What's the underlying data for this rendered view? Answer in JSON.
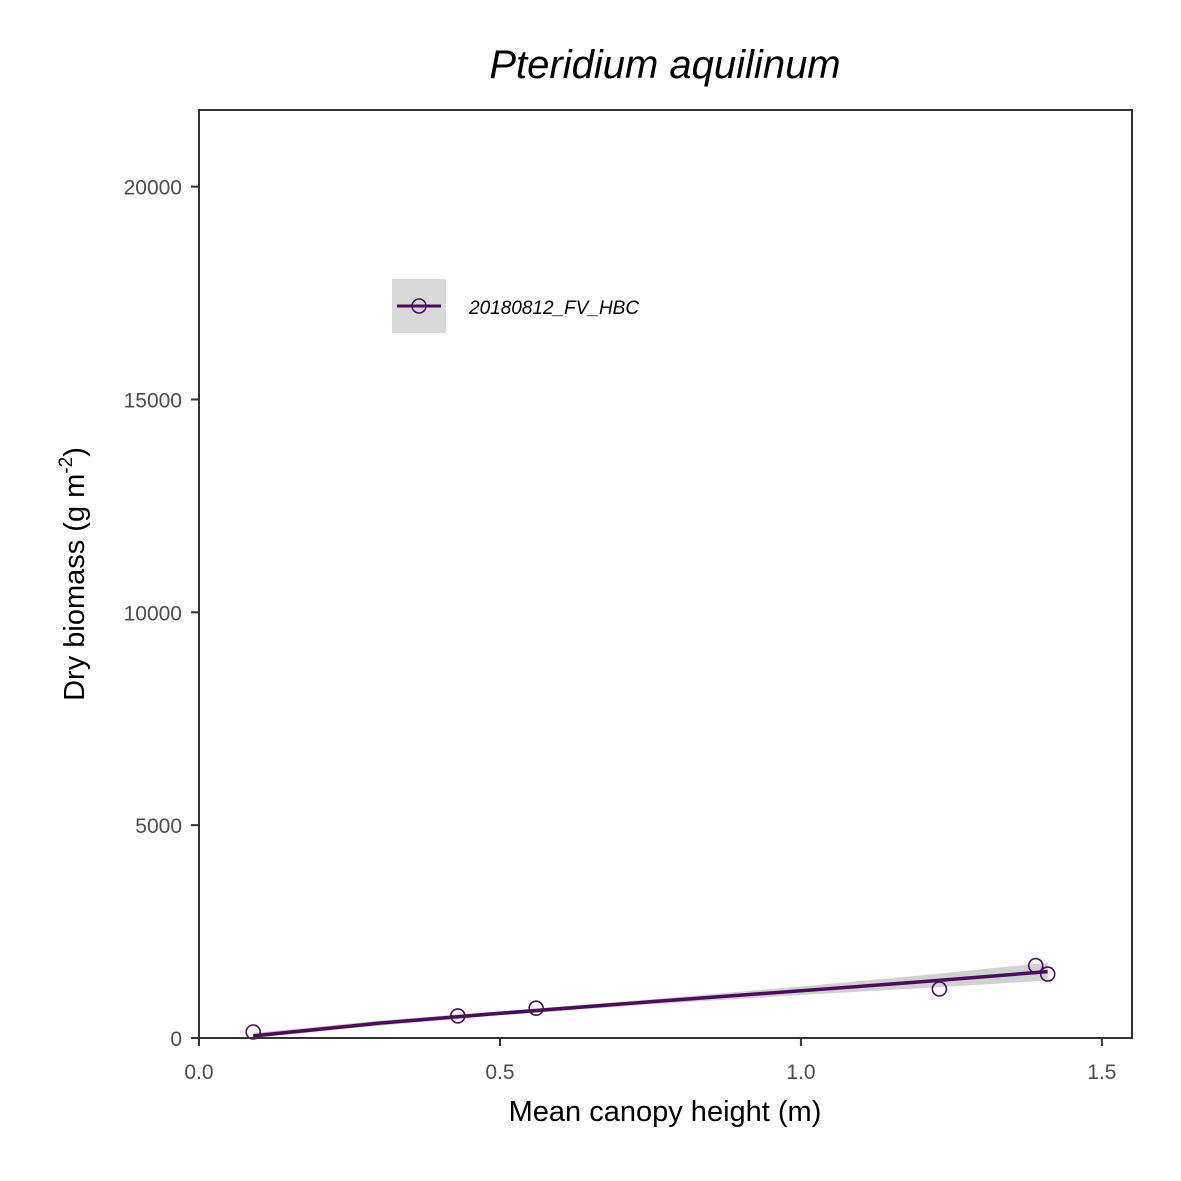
{
  "chart_data": {
    "type": "scatter",
    "title": "Pteridium aquilinum",
    "xlabel": "Mean canopy height (m)",
    "ylabel": {
      "main": "Dry biomass (g m",
      "superscript": "-2",
      "close": ")"
    },
    "xlim": [
      0.0,
      1.55
    ],
    "ylim": [
      0,
      21800
    ],
    "x_ticks": [
      0.0,
      0.5,
      1.0,
      1.5
    ],
    "x_tick_labels": [
      "0.0",
      "0.5",
      "1.0",
      "1.5"
    ],
    "y_ticks": [
      0,
      5000,
      10000,
      15000,
      20000
    ],
    "y_tick_labels": [
      "0",
      "5000",
      "10000",
      "15000",
      "20000"
    ],
    "grid": false,
    "legend_position": "top-left",
    "series": [
      {
        "name": "20180812_FV_HBC",
        "color": "#4a0d5c",
        "marker": "open-circle",
        "points": [
          {
            "x": 0.09,
            "y": 140
          },
          {
            "x": 0.43,
            "y": 520
          },
          {
            "x": 0.56,
            "y": 700
          },
          {
            "x": 1.23,
            "y": 1150
          },
          {
            "x": 1.39,
            "y": 1700
          },
          {
            "x": 1.41,
            "y": 1500
          }
        ],
        "fit": {
          "x": [
            0.09,
            0.3,
            0.5,
            0.75,
            1.0,
            1.2,
            1.41
          ],
          "y": [
            50,
            350,
            580,
            850,
            1110,
            1320,
            1560
          ],
          "lower": [
            0,
            290,
            530,
            790,
            1010,
            1170,
            1350
          ],
          "upper": [
            120,
            410,
            630,
            910,
            1210,
            1470,
            1770
          ]
        }
      }
    ]
  }
}
